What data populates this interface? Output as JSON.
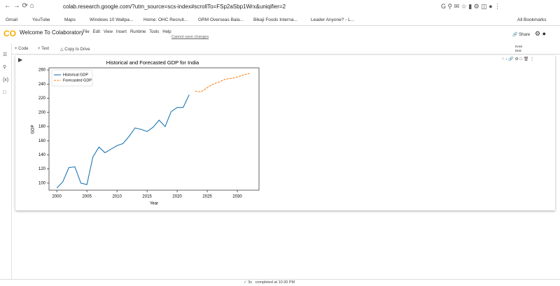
{
  "browser": {
    "url": "colab.research.google.com/?utm_source=scs-index#scrollTo=FSp2aSbp1Wrx&uniqifier=2",
    "bookmarks": [
      "Gmail",
      "YouTube",
      "Maps",
      "Windows 10 Wallpa...",
      "Home: OHC Recruit...",
      "GRM Overseas Bala...",
      "Bikaji Foods Interna...",
      "Leader Anyone? - L..."
    ],
    "all_bookmarks": "All Bookmarks"
  },
  "colab": {
    "title": "Welcome To Colaboratory",
    "menu": [
      "File",
      "Edit",
      "View",
      "Insert",
      "Runtime",
      "Tools",
      "Help"
    ],
    "save_notice": "Cannot save changes",
    "share": "Share",
    "toolbar": [
      "+ Code",
      "+ Text",
      "Copy to Drive"
    ],
    "ram": "RAM",
    "disk": "Disk",
    "status_time": "3s",
    "status_text": "completed at 10:30 PM"
  },
  "chart_data": {
    "type": "line",
    "title": "Historical and Forecasted GDP for India",
    "x_label": "Year",
    "y_label": "GDP",
    "xlim": [
      1998.7,
      2033.6
    ],
    "ylim": [
      90,
      263
    ],
    "xticks": [
      2000,
      2005,
      2010,
      2015,
      2020,
      2025,
      2030
    ],
    "yticks": [
      100,
      120,
      140,
      160,
      180,
      200,
      220,
      240,
      260
    ],
    "legend_loc": "upper left",
    "series": [
      {
        "name": "Historical GDP",
        "color": "#1f77b4",
        "line_style": "solid",
        "x": [
          2000,
          2001,
          2002,
          2003,
          2004,
          2005,
          2006,
          2007,
          2008,
          2009,
          2010,
          2011,
          2012,
          2013,
          2014,
          2015,
          2016,
          2017,
          2018,
          2019,
          2020,
          2021,
          2022
        ],
        "values": [
          93,
          102,
          122,
          123,
          100,
          98,
          137,
          151,
          143,
          148,
          153,
          156,
          166,
          178,
          176,
          173,
          179,
          189,
          180,
          201,
          207,
          207,
          225
        ]
      },
      {
        "name": "Forecasted GDP",
        "color": "#ff7f0e",
        "line_style": "dashed",
        "x": [
          2023,
          2024,
          2025,
          2026,
          2027,
          2028,
          2029,
          2030,
          2031,
          2032
        ],
        "values": [
          230,
          229,
          235,
          240,
          243,
          247,
          248,
          250,
          253,
          255
        ]
      }
    ]
  }
}
